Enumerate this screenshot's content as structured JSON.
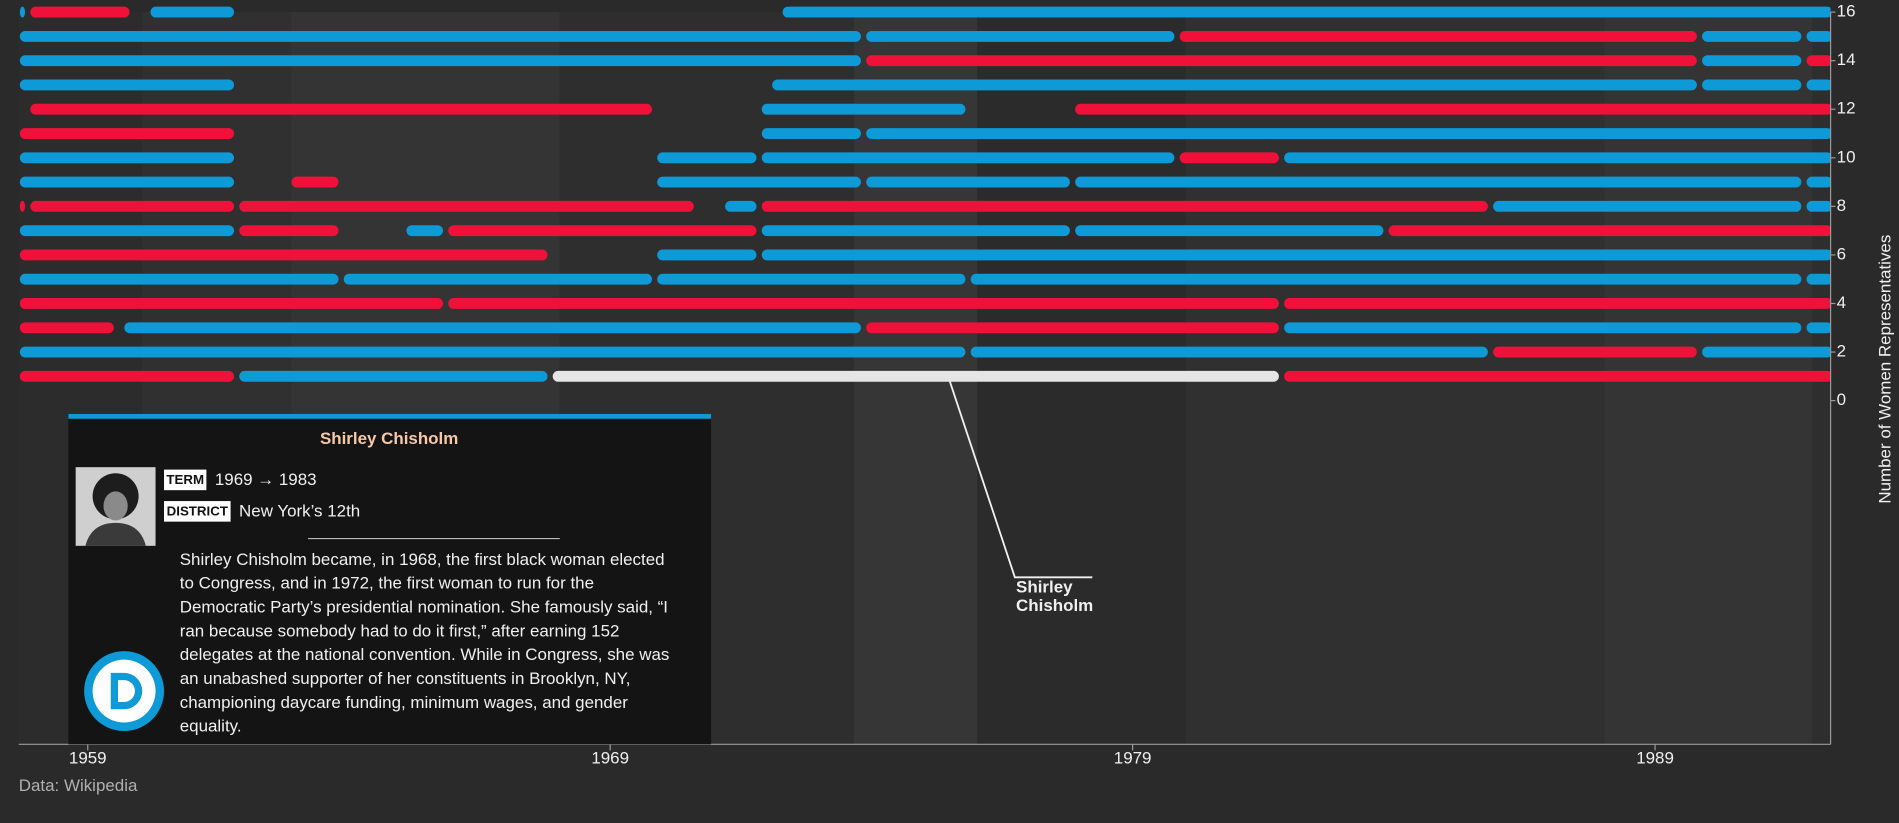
{
  "chart_data": {
    "type": "timeline",
    "ylabel": "Number of Women Representatives",
    "source": "Data: Wikipedia",
    "xlim": [
      1957.68,
      1992.36
    ],
    "xticks": [
      1959,
      1969,
      1979,
      1989
    ],
    "ylim": [
      0,
      16
    ],
    "yticks": [
      0,
      2,
      4,
      6,
      8,
      10,
      12,
      14,
      16
    ],
    "bars": [
      {
        "row": 1,
        "start": 1957.7,
        "end": 1961.8,
        "color": "#f0113a"
      },
      {
        "row": 1,
        "start": 1961.9,
        "end": 1967.8,
        "color": "#0d9ad6"
      },
      {
        "row": 1,
        "start": 1967.9,
        "end": 1981.8,
        "color": "#e5e5e5"
      },
      {
        "row": 1,
        "start": 1981.9,
        "end": 1992.4,
        "color": "#f0113a"
      },
      {
        "row": 2,
        "start": 1957.7,
        "end": 1975.8,
        "color": "#0d9ad6"
      },
      {
        "row": 2,
        "start": 1975.9,
        "end": 1985.8,
        "color": "#0d9ad6"
      },
      {
        "row": 2,
        "start": 1985.9,
        "end": 1989.8,
        "color": "#f0113a"
      },
      {
        "row": 2,
        "start": 1989.9,
        "end": 1992.4,
        "color": "#0d9ad6"
      },
      {
        "row": 3,
        "start": 1957.7,
        "end": 1959.5,
        "color": "#f0113a"
      },
      {
        "row": 3,
        "start": 1959.7,
        "end": 1973.8,
        "color": "#0d9ad6"
      },
      {
        "row": 3,
        "start": 1973.9,
        "end": 1981.8,
        "color": "#f0113a"
      },
      {
        "row": 3,
        "start": 1981.9,
        "end": 1991.8,
        "color": "#0d9ad6"
      },
      {
        "row": 3,
        "start": 1991.9,
        "end": 1992.4,
        "color": "#0d9ad6"
      },
      {
        "row": 4,
        "start": 1957.7,
        "end": 1965.8,
        "color": "#f0113a"
      },
      {
        "row": 4,
        "start": 1965.9,
        "end": 1981.8,
        "color": "#f0113a"
      },
      {
        "row": 4,
        "start": 1981.9,
        "end": 1992.4,
        "color": "#f0113a"
      },
      {
        "row": 5,
        "start": 1957.7,
        "end": 1963.8,
        "color": "#0d9ad6"
      },
      {
        "row": 5,
        "start": 1963.9,
        "end": 1969.8,
        "color": "#0d9ad6"
      },
      {
        "row": 5,
        "start": 1969.9,
        "end": 1975.8,
        "color": "#0d9ad6"
      },
      {
        "row": 5,
        "start": 1975.9,
        "end": 1991.8,
        "color": "#0d9ad6"
      },
      {
        "row": 5,
        "start": 1991.9,
        "end": 1992.4,
        "color": "#0d9ad6"
      },
      {
        "row": 6,
        "start": 1957.7,
        "end": 1967.8,
        "color": "#f0113a"
      },
      {
        "row": 6,
        "start": 1969.9,
        "end": 1971.8,
        "color": "#0d9ad6"
      },
      {
        "row": 6,
        "start": 1971.9,
        "end": 1992.4,
        "color": "#0d9ad6"
      },
      {
        "row": 7,
        "start": 1957.7,
        "end": 1961.8,
        "color": "#0d9ad6"
      },
      {
        "row": 7,
        "start": 1961.9,
        "end": 1963.8,
        "color": "#f0113a"
      },
      {
        "row": 7,
        "start": 1965.1,
        "end": 1965.8,
        "color": "#0d9ad6"
      },
      {
        "row": 7,
        "start": 1965.9,
        "end": 1971.8,
        "color": "#f0113a"
      },
      {
        "row": 7,
        "start": 1971.9,
        "end": 1977.8,
        "color": "#0d9ad6"
      },
      {
        "row": 7,
        "start": 1977.9,
        "end": 1983.8,
        "color": "#0d9ad6"
      },
      {
        "row": 7,
        "start": 1983.9,
        "end": 1992.4,
        "color": "#f0113a"
      },
      {
        "row": 8,
        "start": 1957.7,
        "end": 1957.8,
        "color": "#f0113a"
      },
      {
        "row": 8,
        "start": 1957.9,
        "end": 1961.8,
        "color": "#f0113a"
      },
      {
        "row": 8,
        "start": 1961.9,
        "end": 1970.6,
        "color": "#f0113a"
      },
      {
        "row": 8,
        "start": 1971.2,
        "end": 1971.8,
        "color": "#0d9ad6"
      },
      {
        "row": 8,
        "start": 1971.9,
        "end": 1985.8,
        "color": "#f0113a"
      },
      {
        "row": 8,
        "start": 1985.9,
        "end": 1991.8,
        "color": "#0d9ad6"
      },
      {
        "row": 8,
        "start": 1991.9,
        "end": 1992.4,
        "color": "#0d9ad6"
      },
      {
        "row": 9,
        "start": 1957.7,
        "end": 1961.8,
        "color": "#0d9ad6"
      },
      {
        "row": 9,
        "start": 1962.9,
        "end": 1963.8,
        "color": "#f0113a"
      },
      {
        "row": 9,
        "start": 1969.9,
        "end": 1973.8,
        "color": "#0d9ad6"
      },
      {
        "row": 9,
        "start": 1973.9,
        "end": 1977.8,
        "color": "#0d9ad6"
      },
      {
        "row": 9,
        "start": 1977.9,
        "end": 1991.8,
        "color": "#0d9ad6"
      },
      {
        "row": 9,
        "start": 1991.9,
        "end": 1992.4,
        "color": "#0d9ad6"
      },
      {
        "row": 10,
        "start": 1957.7,
        "end": 1961.8,
        "color": "#0d9ad6"
      },
      {
        "row": 10,
        "start": 1969.9,
        "end": 1971.8,
        "color": "#0d9ad6"
      },
      {
        "row": 10,
        "start": 1971.9,
        "end": 1979.8,
        "color": "#0d9ad6"
      },
      {
        "row": 10,
        "start": 1979.9,
        "end": 1981.8,
        "color": "#f0113a"
      },
      {
        "row": 10,
        "start": 1981.9,
        "end": 1992.4,
        "color": "#0d9ad6"
      },
      {
        "row": 11,
        "start": 1957.7,
        "end": 1961.8,
        "color": "#f0113a"
      },
      {
        "row": 11,
        "start": 1971.9,
        "end": 1973.8,
        "color": "#0d9ad6"
      },
      {
        "row": 11,
        "start": 1973.9,
        "end": 1992.4,
        "color": "#0d9ad6"
      },
      {
        "row": 12,
        "start": 1957.9,
        "end": 1969.8,
        "color": "#f0113a"
      },
      {
        "row": 12,
        "start": 1971.9,
        "end": 1975.8,
        "color": "#0d9ad6"
      },
      {
        "row": 12,
        "start": 1977.9,
        "end": 1992.4,
        "color": "#f0113a"
      },
      {
        "row": 13,
        "start": 1957.7,
        "end": 1961.8,
        "color": "#0d9ad6"
      },
      {
        "row": 13,
        "start": 1972.1,
        "end": 1989.8,
        "color": "#0d9ad6"
      },
      {
        "row": 13,
        "start": 1989.9,
        "end": 1991.8,
        "color": "#0d9ad6"
      },
      {
        "row": 13,
        "start": 1991.9,
        "end": 1992.4,
        "color": "#0d9ad6"
      },
      {
        "row": 14,
        "start": 1957.7,
        "end": 1973.8,
        "color": "#0d9ad6"
      },
      {
        "row": 14,
        "start": 1973.9,
        "end": 1989.8,
        "color": "#f0113a"
      },
      {
        "row": 14,
        "start": 1989.9,
        "end": 1991.8,
        "color": "#0d9ad6"
      },
      {
        "row": 14,
        "start": 1991.9,
        "end": 1992.4,
        "color": "#f0113a"
      },
      {
        "row": 15,
        "start": 1957.7,
        "end": 1973.8,
        "color": "#0d9ad6"
      },
      {
        "row": 15,
        "start": 1973.9,
        "end": 1979.8,
        "color": "#0d9ad6"
      },
      {
        "row": 15,
        "start": 1979.9,
        "end": 1989.8,
        "color": "#f0113a"
      },
      {
        "row": 15,
        "start": 1989.9,
        "end": 1991.8,
        "color": "#0d9ad6"
      },
      {
        "row": 15,
        "start": 1991.9,
        "end": 1992.4,
        "color": "#0d9ad6"
      },
      {
        "row": 16,
        "start": 1957.7,
        "end": 1957.8,
        "color": "#0d9ad6"
      },
      {
        "row": 16,
        "start": 1957.9,
        "end": 1959.8,
        "color": "#f0113a"
      },
      {
        "row": 16,
        "start": 1960.2,
        "end": 1961.8,
        "color": "#0d9ad6"
      },
      {
        "row": 16,
        "start": 1972.3,
        "end": 1992.4,
        "color": "#0d9ad6"
      }
    ],
    "annotation": {
      "bar": 2,
      "lines": [
        "Shirley",
        "Chisholm"
      ]
    },
    "tooltip": {
      "title": "Shirley Chisholm",
      "term_label": "TERM",
      "term": "1969 → 1983",
      "district_label": "DISTRICT",
      "district": "New York’s 12th",
      "text": [
        "Shirley Chisholm became, in 1968, the first black woman elected",
        "to Congress, and in 1972, the first woman to run for the",
        "Democratic Party’s presidential nomination. She famously said, “I",
        "ran because somebody had to do it first,” after earning 152",
        "delegates at the national convention. While in Congress, she was",
        "an unabashed supporter of her constituents in Brooklyn, NY,",
        "championing daycare funding, minimum wages, and gender",
        "equality."
      ]
    }
  }
}
